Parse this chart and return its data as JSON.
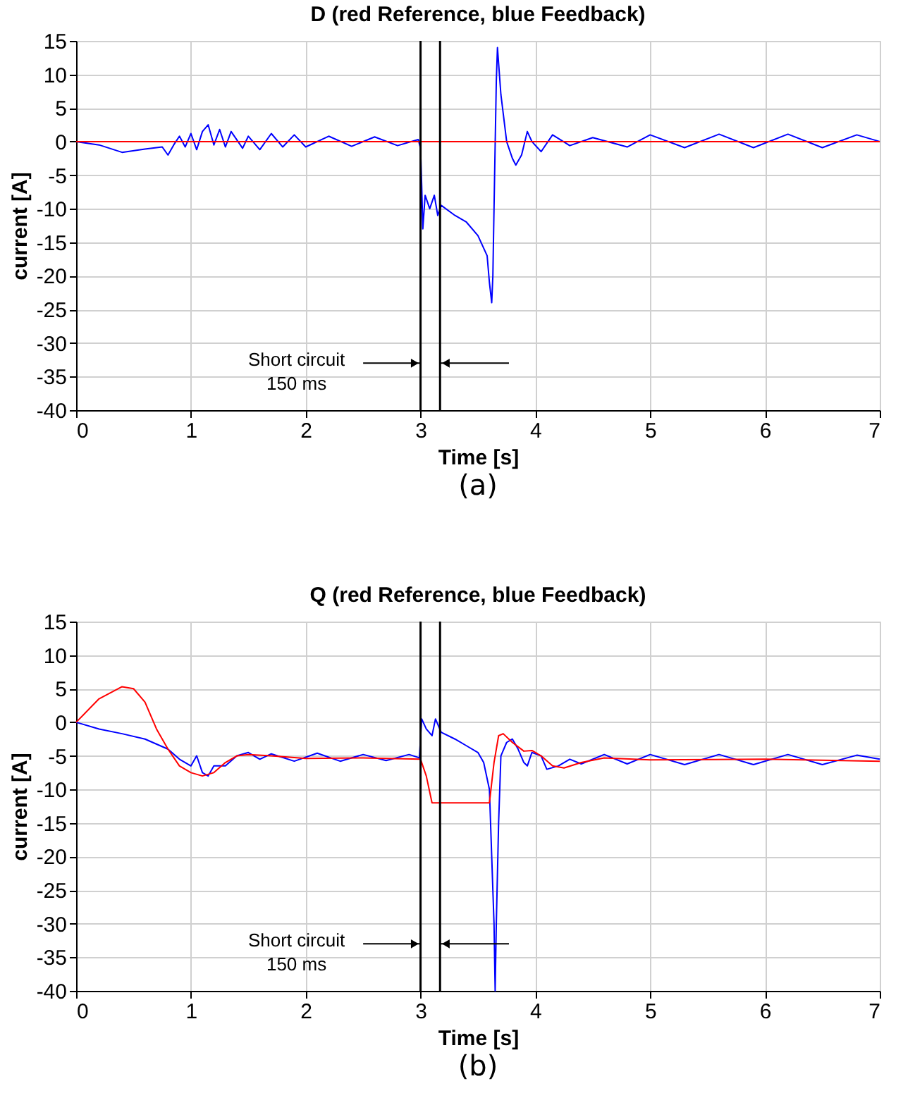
{
  "chart_data": [
    {
      "type": "line",
      "title": "D (red Reference, blue Feedback)",
      "xlabel": "Time [s]",
      "ylabel": "current [A]",
      "xlim": [
        0,
        7
      ],
      "xticks": [
        0,
        1,
        2,
        3,
        4,
        5,
        6,
        7
      ],
      "ylim": [
        -40,
        15
      ],
      "yticks": [
        -40,
        -35,
        -30,
        -25,
        -20,
        -15,
        -10,
        -5,
        0,
        5,
        10,
        15
      ],
      "grid": true,
      "line_style": "solid",
      "marker": "none",
      "series": [
        {
          "color": "#0000ff",
          "x": [
            0,
            0.2,
            0.4,
            0.6,
            0.75,
            0.8,
            0.85,
            0.9,
            0.95,
            1.0,
            1.05,
            1.1,
            1.15,
            1.2,
            1.25,
            1.3,
            1.35,
            1.45,
            1.5,
            1.6,
            1.7,
            1.8,
            1.9,
            2.0,
            2.2,
            2.4,
            2.6,
            2.8,
            2.98,
            3.0,
            3.01,
            3.02,
            3.04,
            3.08,
            3.12,
            3.15,
            3.18,
            3.3,
            3.4,
            3.5,
            3.58,
            3.6,
            3.62,
            3.63,
            3.64,
            3.66,
            3.67,
            3.7,
            3.75,
            3.8,
            3.83,
            3.88,
            3.93,
            3.97,
            4.05,
            4.15,
            4.3,
            4.5,
            4.8,
            5.0,
            5.3,
            5.6,
            5.9,
            6.2,
            6.5,
            6.8,
            7.0
          ],
          "values": [
            0,
            -0.5,
            -1.6,
            -1.1,
            -0.8,
            -2,
            -0.5,
            0.8,
            -0.8,
            1.2,
            -1.2,
            1.5,
            2.5,
            -0.5,
            1.8,
            -0.8,
            1.5,
            -1,
            0.8,
            -1.2,
            1.2,
            -0.8,
            1,
            -0.8,
            0.8,
            -0.7,
            0.7,
            -0.6,
            0.3,
            -1,
            -6.5,
            -13,
            -8,
            -10,
            -8,
            -11,
            -9.5,
            -11,
            -12,
            -14,
            -17,
            -21,
            -24,
            -20,
            -10,
            9,
            14,
            7,
            0,
            -2.5,
            -3.5,
            -2,
            1.5,
            0,
            -1.5,
            1,
            -0.6,
            0.6,
            -0.8,
            1,
            -0.9,
            1.1,
            -0.9,
            1.1,
            -0.9,
            1.0,
            0
          ]
        },
        {
          "color": "#ff0000",
          "x": [
            0,
            7
          ],
          "values": [
            0,
            0
          ]
        }
      ],
      "ref_lines": [
        {
          "axis": "x",
          "value": 3,
          "color": "#000000"
        },
        {
          "axis": "x",
          "value": 3.17,
          "color": "#000000"
        }
      ],
      "annotations": [
        {
          "text": "Short circuit\n150 ms",
          "x": 3,
          "y": -33
        },
        "(a)"
      ]
    },
    {
      "type": "line",
      "title": "Q (red Reference, blue Feedback)",
      "xlabel": "Time [s]",
      "ylabel": "current [A]",
      "xlim": [
        0,
        7
      ],
      "xticks": [
        0,
        1,
        2,
        3,
        4,
        5,
        6,
        7
      ],
      "ylim": [
        -40,
        15
      ],
      "yticks": [
        -40,
        -35,
        -30,
        -25,
        -20,
        -15,
        -10,
        -5,
        0,
        5,
        10,
        15
      ],
      "grid": true,
      "line_style": "solid",
      "marker": "none",
      "series": [
        {
          "color": "#0000ff",
          "x": [
            0,
            0.2,
            0.4,
            0.6,
            0.8,
            0.9,
            1.0,
            1.05,
            1.1,
            1.15,
            1.2,
            1.3,
            1.4,
            1.5,
            1.6,
            1.7,
            1.9,
            2.1,
            2.3,
            2.5,
            2.7,
            2.9,
            2.99,
            3.01,
            3.05,
            3.1,
            3.13,
            3.18,
            3.3,
            3.4,
            3.5,
            3.55,
            3.6,
            3.62,
            3.64,
            3.65,
            3.66,
            3.68,
            3.7,
            3.75,
            3.8,
            3.85,
            3.9,
            3.93,
            3.97,
            4.05,
            4.1,
            4.2,
            4.3,
            4.4,
            4.6,
            4.8,
            5.0,
            5.3,
            5.6,
            5.9,
            6.2,
            6.5,
            6.8,
            7.0
          ],
          "values": [
            0,
            -1,
            -1.7,
            -2.5,
            -4,
            -5.5,
            -6.5,
            -5,
            -7.5,
            -8,
            -6.5,
            -6.5,
            -5,
            -4.5,
            -5.5,
            -4.7,
            -5.8,
            -4.6,
            -5.8,
            -4.8,
            -5.7,
            -4.8,
            -5.3,
            0.5,
            -1,
            -2,
            0.5,
            -1.5,
            -2.5,
            -3.5,
            -4.5,
            -6,
            -10,
            -20,
            -30,
            -40,
            -30,
            -15,
            -5,
            -3,
            -2.5,
            -4,
            -6,
            -6.5,
            -4.5,
            -5,
            -7,
            -6.5,
            -5.5,
            -6.2,
            -4.8,
            -6.2,
            -4.8,
            -6.3,
            -4.8,
            -6.3,
            -4.8,
            -6.3,
            -4.9,
            -5.5
          ]
        },
        {
          "color": "#ff0000",
          "x": [
            0,
            0.2,
            0.4,
            0.5,
            0.6,
            0.7,
            0.8,
            0.9,
            1.0,
            1.1,
            1.2,
            1.3,
            1.4,
            1.5,
            1.7,
            2.0,
            2.5,
            3.0,
            3.05,
            3.1,
            3.6,
            3.64,
            3.68,
            3.72,
            3.8,
            3.9,
            3.97,
            4.05,
            4.15,
            4.25,
            4.4,
            4.6,
            5.0,
            6.0,
            7.0
          ],
          "values": [
            0,
            3.5,
            5.3,
            5,
            3,
            -1,
            -4,
            -6.5,
            -7.5,
            -8,
            -7.5,
            -6,
            -5,
            -4.8,
            -5,
            -5.4,
            -5.3,
            -5.5,
            -8,
            -12,
            -12,
            -6,
            -2,
            -1.7,
            -3,
            -4.3,
            -4.2,
            -5,
            -6.5,
            -6.8,
            -6,
            -5.3,
            -5.6,
            -5.5,
            -5.8
          ]
        }
      ],
      "ref_lines": [
        {
          "axis": "x",
          "value": 3,
          "color": "#000000"
        },
        {
          "axis": "x",
          "value": 3.17,
          "color": "#000000"
        }
      ],
      "annotations": [
        {
          "text": "Short circuit\n150 ms",
          "x": 3,
          "y": -33
        },
        "(b)"
      ]
    }
  ]
}
